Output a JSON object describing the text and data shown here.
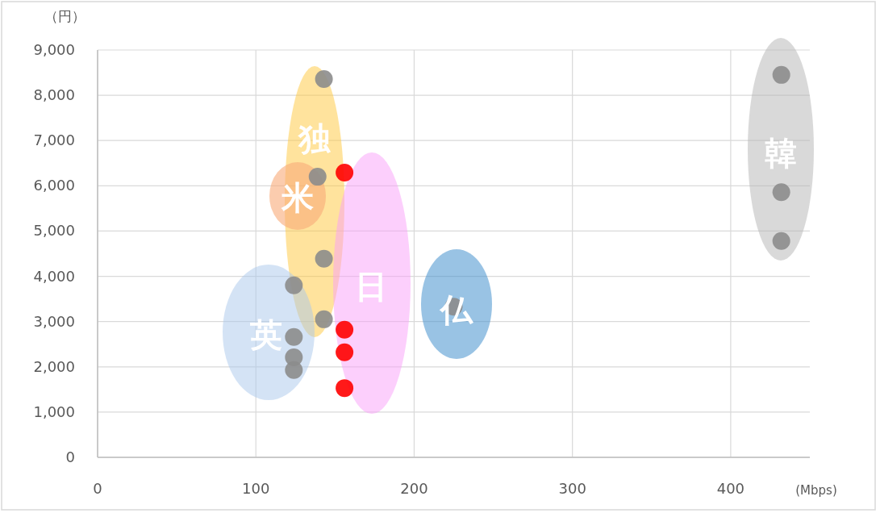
{
  "chart_data": {
    "type": "scatter",
    "xlabel": "(Mbps)",
    "ylabel": "（円）",
    "xlim": [
      0,
      450
    ],
    "ylim": [
      0,
      9000
    ],
    "xticks": [
      0,
      100,
      200,
      300,
      400
    ],
    "yticks": [
      0,
      {
        "value": 1000,
        "label": "1,000"
      },
      {
        "value": 2000,
        "label": "2,000"
      },
      {
        "value": 3000,
        "label": "3,000"
      },
      {
        "value": 4000,
        "label": "4,000"
      },
      {
        "value": 5000,
        "label": "5,000"
      },
      {
        "value": 6000,
        "label": "6,000"
      },
      {
        "value": 7000,
        "label": "7,000"
      },
      {
        "value": 8000,
        "label": "8,000"
      },
      {
        "value": 9000,
        "label": "9,000"
      }
    ],
    "grid": true,
    "marker": "circle",
    "series": [
      {
        "color": "#8c8c8c",
        "x": [
          143,
          139,
          143,
          124,
          143,
          124,
          124,
          124,
          432,
          432,
          432,
          225
        ],
        "values": [
          8360,
          6200,
          4390,
          3800,
          3050,
          2660,
          2210,
          1930,
          8450,
          5860,
          4780,
          3330
        ]
      },
      {
        "color": "#ff0000",
        "x": [
          156,
          156,
          156,
          156
        ],
        "values": [
          6290,
          2820,
          2320,
          1530
        ]
      }
    ],
    "annotations": [
      "独",
      "米",
      "日",
      "仏",
      "英",
      "韓"
    ]
  }
}
